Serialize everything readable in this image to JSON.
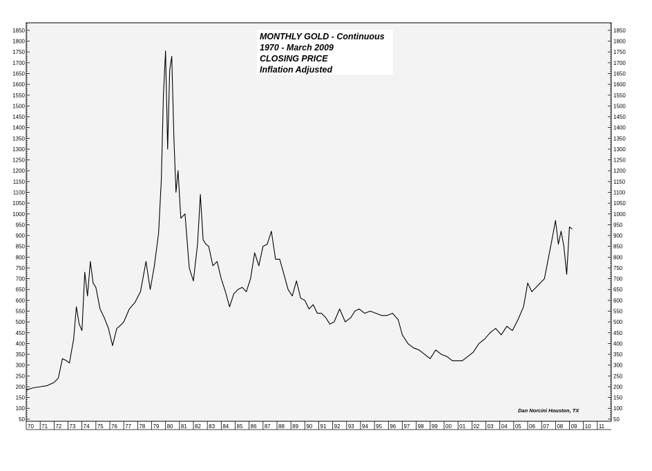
{
  "chart_data": {
    "type": "line",
    "title_lines": [
      "MONTHLY GOLD - Continuous",
      "1970 - March 2009",
      "CLOSING PRICE",
      "Inflation Adjusted"
    ],
    "credit": "Dan Norcini    Houston, TX",
    "x_tick_labels": [
      "70",
      "71",
      "72",
      "73",
      "74",
      "75",
      "76",
      "77",
      "78",
      "79",
      "80",
      "81",
      "82",
      "83",
      "84",
      "85",
      "86",
      "87",
      "88",
      "89",
      "90",
      "91",
      "92",
      "93",
      "94",
      "95",
      "96",
      "97",
      "98",
      "99",
      "00",
      "01",
      "02",
      "03",
      "04",
      "05",
      "06",
      "07",
      "08",
      "09",
      "10",
      "11"
    ],
    "y_ticks": [
      50,
      100,
      150,
      200,
      250,
      300,
      350,
      400,
      450,
      500,
      550,
      600,
      650,
      700,
      750,
      800,
      850,
      900,
      950,
      1000,
      1050,
      1100,
      1150,
      1200,
      1250,
      1300,
      1350,
      1400,
      1450,
      1500,
      1550,
      1600,
      1650,
      1700,
      1750,
      1800,
      1850
    ],
    "xlim": [
      1970,
      2012
    ],
    "ylim": [
      40,
      1885
    ],
    "grid": false,
    "line_color": "#000000",
    "background": "#f3f3f3",
    "series": [
      {
        "x": [
          1970.0,
          1970.5,
          1971.0,
          1971.5,
          1972.0,
          1972.3,
          1972.6,
          1972.9,
          1973.1,
          1973.4,
          1973.6,
          1973.8,
          1974.0,
          1974.2,
          1974.4,
          1974.6,
          1974.8,
          1975.0,
          1975.3,
          1975.6,
          1975.9,
          1976.2,
          1976.5,
          1976.7,
          1977.0,
          1977.4,
          1977.8,
          1978.2,
          1978.6,
          1978.9,
          1979.2,
          1979.5,
          1979.7,
          1979.85,
          1980.0,
          1980.15,
          1980.3,
          1980.45,
          1980.6,
          1980.75,
          1980.9,
          1981.1,
          1981.4,
          1981.7,
          1982.0,
          1982.3,
          1982.5,
          1982.7,
          1982.9,
          1983.1,
          1983.4,
          1983.7,
          1984.0,
          1984.3,
          1984.6,
          1984.9,
          1985.2,
          1985.5,
          1985.8,
          1986.1,
          1986.4,
          1986.7,
          1987.0,
          1987.3,
          1987.6,
          1987.9,
          1988.2,
          1988.5,
          1988.8,
          1989.1,
          1989.4,
          1989.7,
          1990.0,
          1990.3,
          1990.6,
          1990.9,
          1991.2,
          1991.5,
          1991.8,
          1992.1,
          1992.5,
          1992.9,
          1993.3,
          1993.6,
          1993.9,
          1994.3,
          1994.7,
          1995.1,
          1995.5,
          1995.9,
          1996.3,
          1996.7,
          1997.0,
          1997.4,
          1997.8,
          1998.2,
          1998.6,
          1999.0,
          1999.4,
          1999.8,
          2000.2,
          2000.6,
          2001.0,
          2001.3,
          2001.7,
          2002.1,
          2002.5,
          2002.9,
          2003.3,
          2003.7,
          2004.1,
          2004.5,
          2004.9,
          2005.3,
          2005.7,
          2006.0,
          2006.3,
          2006.6,
          2006.9,
          2007.2,
          2007.5,
          2007.8,
          2008.0,
          2008.2,
          2008.4,
          2008.6,
          2008.8,
          2009.0,
          2009.2
        ],
        "y": [
          185,
          195,
          200,
          205,
          220,
          240,
          330,
          320,
          310,
          420,
          570,
          490,
          460,
          730,
          620,
          780,
          680,
          660,
          560,
          520,
          470,
          390,
          470,
          480,
          500,
          560,
          590,
          640,
          780,
          650,
          760,
          910,
          1160,
          1550,
          1755,
          1300,
          1665,
          1730,
          1350,
          1100,
          1200,
          980,
          1000,
          750,
          690,
          860,
          1090,
          880,
          860,
          850,
          760,
          780,
          700,
          640,
          570,
          630,
          650,
          660,
          640,
          700,
          820,
          760,
          850,
          860,
          920,
          790,
          790,
          720,
          650,
          620,
          690,
          610,
          600,
          560,
          580,
          540,
          540,
          520,
          490,
          500,
          560,
          500,
          520,
          550,
          560,
          540,
          550,
          540,
          530,
          530,
          540,
          510,
          440,
          400,
          380,
          370,
          350,
          330,
          370,
          350,
          340,
          320,
          320,
          320,
          340,
          360,
          400,
          420,
          450,
          470,
          440,
          480,
          460,
          510,
          570,
          680,
          640,
          660,
          680,
          700,
          800,
          900,
          970,
          860,
          920,
          850,
          720,
          940,
          930
        ]
      }
    ]
  }
}
